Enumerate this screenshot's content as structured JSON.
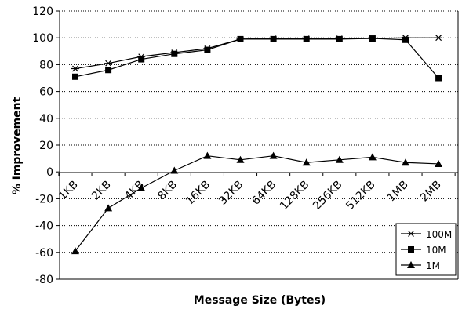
{
  "chart_data": {
    "type": "line",
    "title": "",
    "xlabel": "Message Size (Bytes)",
    "ylabel": "% Improvement",
    "ylim": [
      -80,
      120
    ],
    "yticks": [
      -80,
      -60,
      -40,
      -20,
      0,
      20,
      40,
      60,
      80,
      100,
      120
    ],
    "grid": "horizontal dotted",
    "legend_position": "bottom-right",
    "categories": [
      "1KB",
      "2KB",
      "4KB",
      "8KB",
      "16KB",
      "32KB",
      "64KB",
      "128KB",
      "256KB",
      "512KB",
      "1MB",
      "2MB"
    ],
    "series": [
      {
        "name": "100M",
        "marker": "star",
        "values": [
          77,
          81,
          86,
          89,
          92,
          99,
          99.5,
          99.5,
          99.5,
          99.5,
          100,
          100
        ]
      },
      {
        "name": "10M",
        "marker": "square",
        "values": [
          71,
          76,
          84,
          88,
          91,
          99,
          99,
          99,
          99,
          99.5,
          98.5,
          70
        ]
      },
      {
        "name": "1M",
        "marker": "triangle",
        "values": [
          -59,
          -27,
          -12,
          1,
          12,
          9,
          12,
          7,
          9,
          11,
          7,
          6
        ]
      }
    ]
  }
}
